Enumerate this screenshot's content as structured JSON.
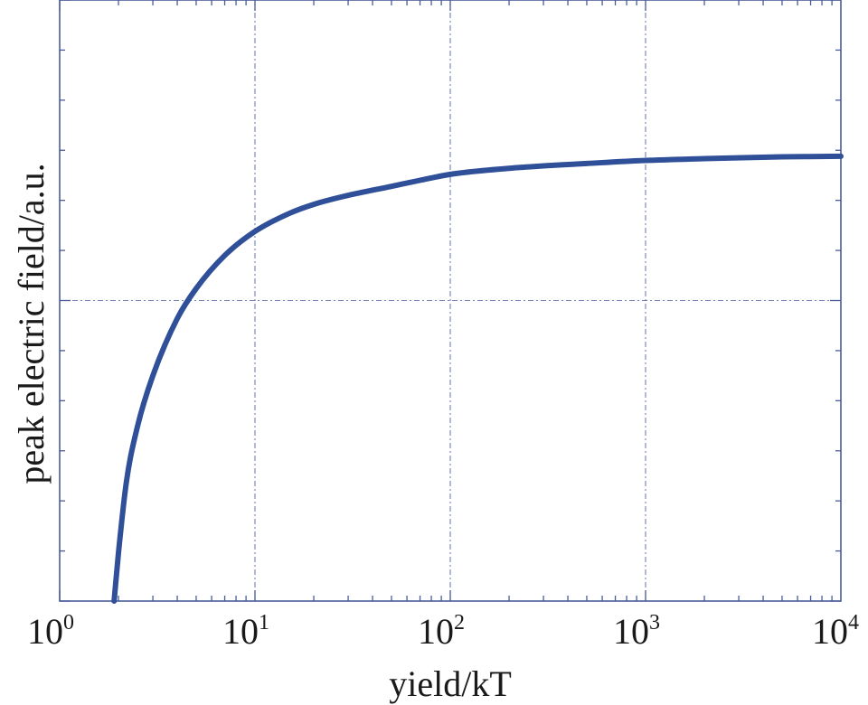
{
  "chart_data": {
    "type": "line",
    "title": "",
    "xlabel": "yield/kT",
    "ylabel": "peak electric field/a.u.",
    "x_scale": "log",
    "xlim": [
      1,
      10000
    ],
    "ylim": [
      0,
      1
    ],
    "x_ticks": [
      {
        "base": "10",
        "exp": "0",
        "value": 1
      },
      {
        "base": "10",
        "exp": "1",
        "value": 10
      },
      {
        "base": "10",
        "exp": "2",
        "value": 100
      },
      {
        "base": "10",
        "exp": "3",
        "value": 1000
      },
      {
        "base": "10",
        "exp": "4",
        "value": 10000
      }
    ],
    "y_gridlines": [
      0.5,
      1.0
    ],
    "grid": true,
    "line_color": "#2f4f98",
    "series": [
      {
        "x": [
          1.9,
          2.0,
          2.2,
          2.5,
          3.0,
          4.0,
          5.0,
          7.0,
          10,
          15,
          20,
          30,
          50,
          70,
          100,
          200,
          300,
          500,
          1000,
          2000,
          5000,
          10000
        ],
        "y": [
          0.0,
          0.08,
          0.2,
          0.29,
          0.375,
          0.47,
          0.52,
          0.575,
          0.615,
          0.645,
          0.66,
          0.675,
          0.69,
          0.7,
          0.71,
          0.72,
          0.724,
          0.728,
          0.733,
          0.736,
          0.739,
          0.74
        ]
      }
    ]
  }
}
